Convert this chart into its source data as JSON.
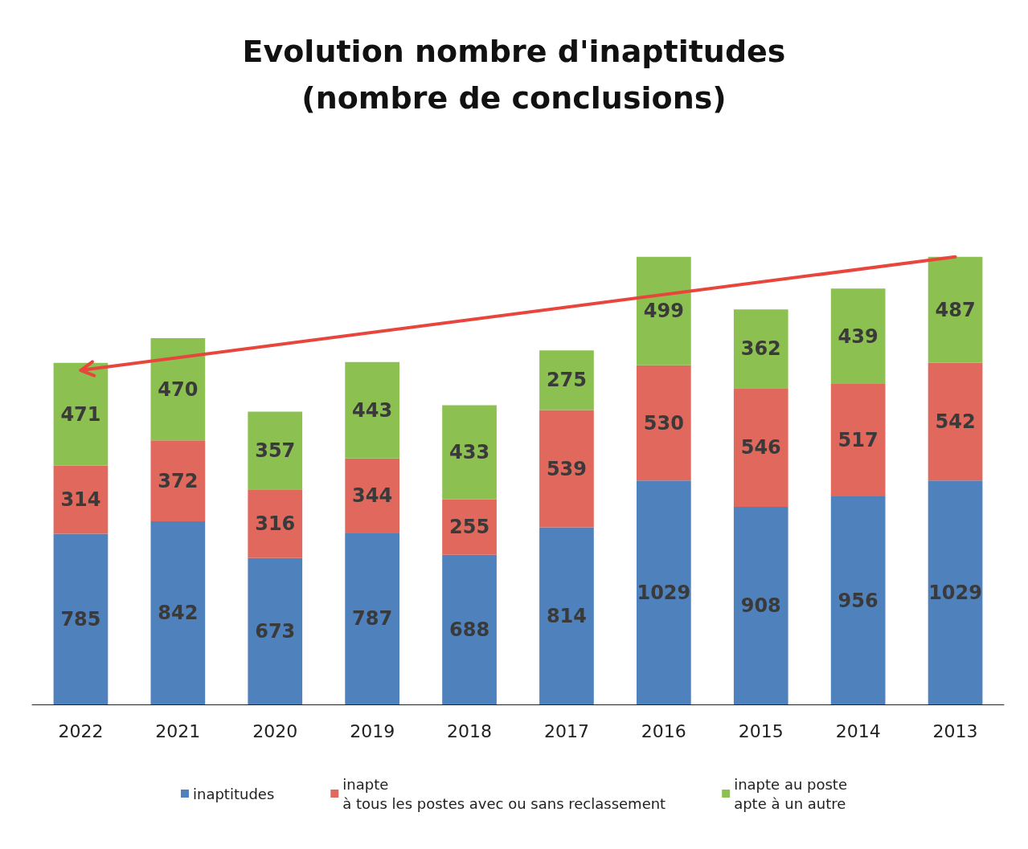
{
  "chart_data": {
    "type": "bar",
    "title": "Evolution nombre d'inaptitudes\n(nombre de conclusions)",
    "categories": [
      "2022",
      "2021",
      "2020",
      "2019",
      "2018",
      "2017",
      "2016",
      "2015",
      "2014",
      "2013"
    ],
    "stacked": true,
    "legend": "bottom",
    "grid": false,
    "series": [
      {
        "name": "inaptitudes",
        "color": "#4f81bd",
        "values": [
          785,
          842,
          673,
          787,
          688,
          814,
          1029,
          908,
          956,
          1029
        ],
        "value_labels": [
          "785",
          "842",
          "673",
          "787",
          "688",
          "814",
          "1029",
          "908",
          "956",
          "1029"
        ]
      },
      {
        "name": "inapte\nà tous les postes avec ou sans reclassement",
        "color": "#e0685c",
        "values": [
          314,
          372,
          316,
          344,
          255,
          539,
          530,
          546,
          517,
          542
        ],
        "value_labels": [
          "314",
          "372",
          "316",
          "344",
          "255",
          "539",
          "530",
          "546",
          "517",
          "542"
        ]
      },
      {
        "name": "inapte au poste\napte à un autre",
        "color": "#8cc152",
        "values": [
          471,
          470,
          357,
          443,
          433,
          275,
          499,
          362,
          439,
          487
        ],
        "value_labels": [
          "471",
          "470",
          "357",
          "443",
          "433",
          "275",
          "499",
          "362",
          "439",
          "487"
        ]
      },
      {
        "type": "line",
        "values": [
          1536,
          null,
          null,
          null,
          null,
          null,
          null,
          null,
          null,
          2058
        ],
        "color": "#e8453c"
      }
    ]
  }
}
